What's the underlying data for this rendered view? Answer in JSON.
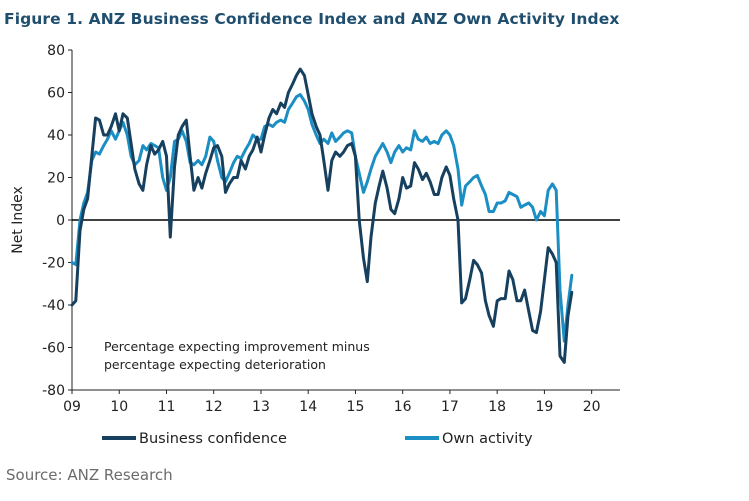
{
  "chart_data": {
    "type": "line",
    "title": "Figure 1. ANZ Business Confidence Index and ANZ Own Activity Index",
    "xlabel": "",
    "ylabel": "Net Index",
    "xlim": [
      2009.0,
      2020.6
    ],
    "ylim": [
      -80,
      80
    ],
    "yticks": [
      80,
      60,
      40,
      20,
      0,
      -20,
      -40,
      -60,
      -80
    ],
    "xtick_labels": [
      "09",
      "10",
      "11",
      "12",
      "13",
      "14",
      "15",
      "16",
      "17",
      "18",
      "19",
      "20"
    ],
    "zero_line": true,
    "annotation": [
      "Percentage expecting improvement minus",
      "percentage expecting deterioration"
    ],
    "series": [
      {
        "name": "Business confidence",
        "color": "#17405f",
        "points": [
          [
            2009.0,
            -40
          ],
          [
            2009.08,
            -38
          ],
          [
            2009.17,
            -5
          ],
          [
            2009.25,
            5
          ],
          [
            2009.33,
            10
          ],
          [
            2009.42,
            30
          ],
          [
            2009.5,
            48
          ],
          [
            2009.58,
            47
          ],
          [
            2009.67,
            40
          ],
          [
            2009.75,
            40
          ],
          [
            2009.83,
            44
          ],
          [
            2009.92,
            50
          ],
          [
            2010.0,
            42
          ],
          [
            2010.08,
            50
          ],
          [
            2010.17,
            48
          ],
          [
            2010.25,
            36
          ],
          [
            2010.33,
            24
          ],
          [
            2010.42,
            17
          ],
          [
            2010.5,
            14
          ],
          [
            2010.58,
            26
          ],
          [
            2010.67,
            35
          ],
          [
            2010.75,
            31
          ],
          [
            2010.83,
            33
          ],
          [
            2010.92,
            37
          ],
          [
            2011.0,
            30
          ],
          [
            2011.08,
            -8
          ],
          [
            2011.17,
            25
          ],
          [
            2011.25,
            40
          ],
          [
            2011.33,
            44
          ],
          [
            2011.42,
            47
          ],
          [
            2011.5,
            30
          ],
          [
            2011.58,
            14
          ],
          [
            2011.67,
            20
          ],
          [
            2011.75,
            15
          ],
          [
            2011.83,
            22
          ],
          [
            2011.92,
            28
          ],
          [
            2012.0,
            34
          ],
          [
            2012.08,
            35
          ],
          [
            2012.17,
            30
          ],
          [
            2012.25,
            13
          ],
          [
            2012.33,
            17
          ],
          [
            2012.42,
            20
          ],
          [
            2012.5,
            20
          ],
          [
            2012.58,
            28
          ],
          [
            2012.67,
            24
          ],
          [
            2012.75,
            30
          ],
          [
            2012.83,
            33
          ],
          [
            2012.92,
            39
          ],
          [
            2013.0,
            32
          ],
          [
            2013.08,
            40
          ],
          [
            2013.17,
            48
          ],
          [
            2013.25,
            52
          ],
          [
            2013.33,
            50
          ],
          [
            2013.42,
            55
          ],
          [
            2013.5,
            53
          ],
          [
            2013.58,
            60
          ],
          [
            2013.67,
            64
          ],
          [
            2013.75,
            68
          ],
          [
            2013.83,
            71
          ],
          [
            2013.92,
            68
          ],
          [
            2014.0,
            59
          ],
          [
            2014.08,
            50
          ],
          [
            2014.17,
            44
          ],
          [
            2014.25,
            40
          ],
          [
            2014.33,
            28
          ],
          [
            2014.42,
            14
          ],
          [
            2014.5,
            28
          ],
          [
            2014.58,
            32
          ],
          [
            2014.67,
            30
          ],
          [
            2014.75,
            32
          ],
          [
            2014.83,
            35
          ],
          [
            2014.92,
            36
          ],
          [
            2015.0,
            30
          ],
          [
            2015.08,
            0
          ],
          [
            2015.17,
            -18
          ],
          [
            2015.25,
            -29
          ],
          [
            2015.33,
            -8
          ],
          [
            2015.42,
            8
          ],
          [
            2015.5,
            16
          ],
          [
            2015.58,
            23
          ],
          [
            2015.67,
            15
          ],
          [
            2015.75,
            5
          ],
          [
            2015.83,
            3
          ],
          [
            2015.92,
            10
          ],
          [
            2016.0,
            20
          ],
          [
            2016.08,
            15
          ],
          [
            2016.17,
            16
          ],
          [
            2016.25,
            27
          ],
          [
            2016.33,
            24
          ],
          [
            2016.42,
            19
          ],
          [
            2016.5,
            22
          ],
          [
            2016.58,
            18
          ],
          [
            2016.67,
            12
          ],
          [
            2016.75,
            12
          ],
          [
            2016.83,
            20
          ],
          [
            2016.92,
            25
          ],
          [
            2017.0,
            21
          ],
          [
            2017.08,
            10
          ],
          [
            2017.17,
            0
          ],
          [
            2017.25,
            -39
          ],
          [
            2017.33,
            -37
          ],
          [
            2017.42,
            -28
          ],
          [
            2017.5,
            -19
          ],
          [
            2017.58,
            -21
          ],
          [
            2017.67,
            -25
          ],
          [
            2017.75,
            -38
          ],
          [
            2017.83,
            -45
          ],
          [
            2017.92,
            -50
          ],
          [
            2018.0,
            -38
          ],
          [
            2018.08,
            -37
          ],
          [
            2018.17,
            -37
          ],
          [
            2018.25,
            -24
          ],
          [
            2018.33,
            -28
          ],
          [
            2018.42,
            -38
          ],
          [
            2018.5,
            -38
          ],
          [
            2018.58,
            -33
          ],
          [
            2018.67,
            -43
          ],
          [
            2018.75,
            -52
          ],
          [
            2018.83,
            -53
          ],
          [
            2018.92,
            -43
          ],
          [
            2019.0,
            -28
          ],
          [
            2019.08,
            -13
          ],
          [
            2019.17,
            -16
          ],
          [
            2019.25,
            -20
          ],
          [
            2019.33,
            -64
          ],
          [
            2019.42,
            -67
          ],
          [
            2019.5,
            -45
          ],
          [
            2019.58,
            -34
          ]
        ]
      },
      {
        "name": "Own activity",
        "color": "#1b8ec4",
        "points": [
          [
            2009.0,
            -20
          ],
          [
            2009.08,
            -21
          ],
          [
            2009.17,
            0
          ],
          [
            2009.25,
            8
          ],
          [
            2009.33,
            13
          ],
          [
            2009.42,
            28
          ],
          [
            2009.5,
            32
          ],
          [
            2009.58,
            31
          ],
          [
            2009.67,
            35
          ],
          [
            2009.75,
            38
          ],
          [
            2009.83,
            42
          ],
          [
            2009.92,
            38
          ],
          [
            2010.0,
            42
          ],
          [
            2010.08,
            46
          ],
          [
            2010.17,
            40
          ],
          [
            2010.25,
            30
          ],
          [
            2010.33,
            26
          ],
          [
            2010.42,
            28
          ],
          [
            2010.5,
            35
          ],
          [
            2010.58,
            33
          ],
          [
            2010.67,
            36
          ],
          [
            2010.75,
            35
          ],
          [
            2010.83,
            34
          ],
          [
            2010.92,
            20
          ],
          [
            2011.0,
            14
          ],
          [
            2011.08,
            20
          ],
          [
            2011.17,
            37
          ],
          [
            2011.25,
            38
          ],
          [
            2011.33,
            42
          ],
          [
            2011.42,
            37
          ],
          [
            2011.5,
            27
          ],
          [
            2011.58,
            26
          ],
          [
            2011.67,
            28
          ],
          [
            2011.75,
            26
          ],
          [
            2011.83,
            30
          ],
          [
            2011.92,
            39
          ],
          [
            2012.0,
            37
          ],
          [
            2012.08,
            28
          ],
          [
            2012.17,
            20
          ],
          [
            2012.25,
            18
          ],
          [
            2012.33,
            22
          ],
          [
            2012.42,
            27
          ],
          [
            2012.5,
            30
          ],
          [
            2012.58,
            29
          ],
          [
            2012.67,
            33
          ],
          [
            2012.75,
            36
          ],
          [
            2012.83,
            40
          ],
          [
            2012.92,
            38
          ],
          [
            2013.0,
            38
          ],
          [
            2013.08,
            44
          ],
          [
            2013.17,
            45
          ],
          [
            2013.25,
            44
          ],
          [
            2013.33,
            46
          ],
          [
            2013.42,
            47
          ],
          [
            2013.5,
            46
          ],
          [
            2013.58,
            52
          ],
          [
            2013.67,
            55
          ],
          [
            2013.75,
            58
          ],
          [
            2013.83,
            59
          ],
          [
            2013.92,
            56
          ],
          [
            2014.0,
            52
          ],
          [
            2014.08,
            45
          ],
          [
            2014.17,
            40
          ],
          [
            2014.25,
            36
          ],
          [
            2014.33,
            38
          ],
          [
            2014.42,
            36
          ],
          [
            2014.5,
            41
          ],
          [
            2014.58,
            37
          ],
          [
            2014.67,
            39
          ],
          [
            2014.75,
            41
          ],
          [
            2014.83,
            42
          ],
          [
            2014.92,
            41
          ],
          [
            2015.0,
            30
          ],
          [
            2015.08,
            22
          ],
          [
            2015.17,
            13
          ],
          [
            2015.25,
            18
          ],
          [
            2015.33,
            24
          ],
          [
            2015.42,
            30
          ],
          [
            2015.5,
            33
          ],
          [
            2015.58,
            36
          ],
          [
            2015.67,
            32
          ],
          [
            2015.75,
            27
          ],
          [
            2015.83,
            32
          ],
          [
            2015.92,
            35
          ],
          [
            2016.0,
            32
          ],
          [
            2016.08,
            34
          ],
          [
            2016.17,
            33
          ],
          [
            2016.25,
            42
          ],
          [
            2016.33,
            38
          ],
          [
            2016.42,
            37
          ],
          [
            2016.5,
            39
          ],
          [
            2016.58,
            36
          ],
          [
            2016.67,
            37
          ],
          [
            2016.75,
            36
          ],
          [
            2016.83,
            40
          ],
          [
            2016.92,
            42
          ],
          [
            2017.0,
            40
          ],
          [
            2017.08,
            35
          ],
          [
            2017.17,
            24
          ],
          [
            2017.25,
            7
          ],
          [
            2017.33,
            16
          ],
          [
            2017.42,
            18
          ],
          [
            2017.5,
            20
          ],
          [
            2017.58,
            21
          ],
          [
            2017.67,
            16
          ],
          [
            2017.75,
            12
          ],
          [
            2017.83,
            4
          ],
          [
            2017.92,
            4
          ],
          [
            2018.0,
            8
          ],
          [
            2018.08,
            8
          ],
          [
            2018.17,
            9
          ],
          [
            2018.25,
            13
          ],
          [
            2018.33,
            12
          ],
          [
            2018.42,
            11
          ],
          [
            2018.5,
            6
          ],
          [
            2018.58,
            7
          ],
          [
            2018.67,
            8
          ],
          [
            2018.75,
            6
          ],
          [
            2018.83,
            0
          ],
          [
            2018.92,
            4
          ],
          [
            2019.0,
            2
          ],
          [
            2019.08,
            14
          ],
          [
            2019.17,
            17
          ],
          [
            2019.25,
            14
          ],
          [
            2019.33,
            -33
          ],
          [
            2019.42,
            -57
          ],
          [
            2019.5,
            -40
          ],
          [
            2019.58,
            -26
          ]
        ]
      }
    ],
    "legend": "bottom",
    "source": "Source: ANZ Research"
  }
}
